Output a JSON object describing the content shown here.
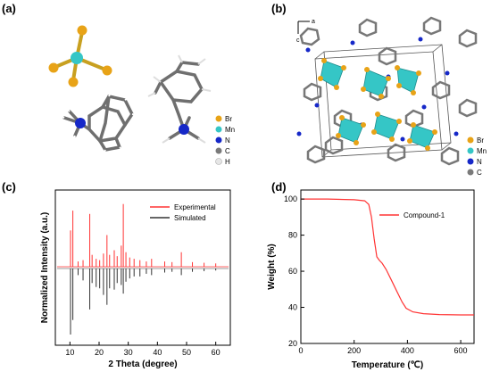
{
  "panels": {
    "a": {
      "label": "(a)",
      "legend": [
        "Br",
        "Mn",
        "N",
        "C",
        "H"
      ]
    },
    "b": {
      "label": "(b)",
      "legend": [
        "Br",
        "Mn",
        "N",
        "C"
      ],
      "axis_a": "a",
      "axis_c": "c"
    },
    "c": {
      "label": "(c)"
    },
    "d": {
      "label": "(d)"
    }
  },
  "colors": {
    "Br": "#e8a317",
    "Mn": "#35c6c6",
    "N": "#1628c8",
    "C": "#7a7a7a",
    "H": "#e6e6e6",
    "experimental": "#ff3333",
    "simulated": "#333333",
    "tga": "#ff3333"
  },
  "chart_data": [
    {
      "type": "line",
      "panel": "c",
      "xlabel": "2 Theta (degree)",
      "ylabel": "Normalized Intensity (a.u.)",
      "xlim": [
        5,
        65
      ],
      "xticks": [
        10,
        20,
        30,
        40,
        50,
        60
      ],
      "grid": false,
      "legend_position": "top-right",
      "series": [
        {
          "name": "Experimental",
          "baseline": "upper",
          "peaks": [
            [
              10.2,
              0.55
            ],
            [
              11.0,
              0.85
            ],
            [
              12.8,
              0.08
            ],
            [
              14.5,
              0.1
            ],
            [
              16.8,
              0.8
            ],
            [
              17.6,
              0.18
            ],
            [
              19.0,
              0.12
            ],
            [
              20.2,
              0.1
            ],
            [
              21.5,
              0.2
            ],
            [
              22.7,
              0.48
            ],
            [
              23.6,
              0.18
            ],
            [
              25.2,
              0.25
            ],
            [
              26.2,
              0.16
            ],
            [
              27.6,
              0.32
            ],
            [
              28.3,
              0.95
            ],
            [
              29.2,
              0.22
            ],
            [
              30.5,
              0.14
            ],
            [
              32.0,
              0.12
            ],
            [
              34.0,
              0.1
            ],
            [
              36.2,
              0.08
            ],
            [
              38.0,
              0.12
            ],
            [
              42.5,
              0.08
            ],
            [
              45.0,
              0.07
            ],
            [
              48.2,
              0.22
            ],
            [
              52.0,
              0.07
            ],
            [
              56.0,
              0.06
            ],
            [
              60.0,
              0.05
            ]
          ]
        },
        {
          "name": "Simulated",
          "baseline": "lower",
          "peaks": [
            [
              10.2,
              1.0
            ],
            [
              11.0,
              0.78
            ],
            [
              12.8,
              0.1
            ],
            [
              14.5,
              0.18
            ],
            [
              16.8,
              0.62
            ],
            [
              17.6,
              0.22
            ],
            [
              19.0,
              0.28
            ],
            [
              20.2,
              0.3
            ],
            [
              21.5,
              0.4
            ],
            [
              22.7,
              0.55
            ],
            [
              23.6,
              0.3
            ],
            [
              25.2,
              0.32
            ],
            [
              26.2,
              0.22
            ],
            [
              27.6,
              0.25
            ],
            [
              28.3,
              0.38
            ],
            [
              29.2,
              0.2
            ],
            [
              30.5,
              0.15
            ],
            [
              32.0,
              0.12
            ],
            [
              34.0,
              0.12
            ],
            [
              36.2,
              0.08
            ],
            [
              38.0,
              0.1
            ],
            [
              42.5,
              0.06
            ],
            [
              45.0,
              0.05
            ],
            [
              48.2,
              0.1
            ],
            [
              52.0,
              0.05
            ],
            [
              56.0,
              0.04
            ],
            [
              60.0,
              0.03
            ]
          ]
        }
      ]
    },
    {
      "type": "line",
      "panel": "d",
      "xlabel": "Temperature (℃)",
      "ylabel": "Weight (%)",
      "xlim": [
        0,
        650
      ],
      "ylim": [
        20,
        105
      ],
      "xticks": [
        0,
        200,
        400,
        600
      ],
      "yticks": [
        20,
        40,
        60,
        80,
        100
      ],
      "grid": false,
      "legend_position": "top-right",
      "series": [
        {
          "name": "Compound-1",
          "x": [
            0,
            100,
            200,
            240,
            255,
            265,
            275,
            285,
            295,
            305,
            320,
            340,
            360,
            380,
            395,
            420,
            460,
            520,
            600,
            650
          ],
          "y": [
            100,
            100,
            99.6,
            99,
            97,
            90,
            78,
            68,
            66,
            64.5,
            61,
            55,
            49,
            43,
            39.5,
            37.5,
            36.5,
            36,
            35.8,
            35.8
          ]
        }
      ]
    }
  ]
}
